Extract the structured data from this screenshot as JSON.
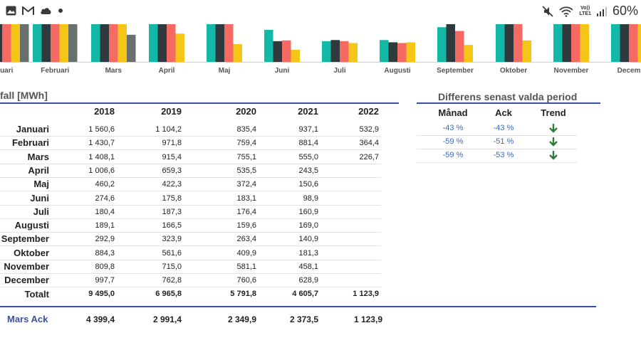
{
  "status_bar": {
    "left_icons": [
      "image-icon",
      "gmail-icon",
      "cloud-icon",
      "dot-icon"
    ],
    "right_icons": [
      "mute-icon",
      "wifi-icon",
      "volte-icon",
      "signal-icon"
    ],
    "volte_top": "Vo))",
    "volte_bottom": "LTE1",
    "battery": "60%"
  },
  "chart_data": {
    "type": "bar",
    "categories": [
      "uari",
      "Februari",
      "Mars",
      "April",
      "Maj",
      "Juni",
      "Juli",
      "Augusti",
      "September",
      "Oktober",
      "November",
      "Decem"
    ],
    "series": [
      {
        "color": "#14b8a6",
        "values": [
          1,
          1,
          1,
          1,
          1,
          0.85,
          0.55,
          0.58,
          0.92,
          1,
          1,
          1
        ]
      },
      {
        "color": "#2f3a3f",
        "values": [
          1,
          1,
          1,
          1,
          1,
          0.55,
          0.58,
          0.52,
          1.0,
          1,
          1,
          1
        ]
      },
      {
        "color": "#f56a63",
        "values": [
          1,
          1,
          1,
          1,
          1,
          0.57,
          0.55,
          0.5,
          0.82,
          1,
          1,
          1
        ]
      },
      {
        "color": "#f5c518",
        "values": [
          1,
          1,
          1,
          0.75,
          0.47,
          0.32,
          0.5,
          0.52,
          0.45,
          0.57,
          1,
          1
        ]
      },
      {
        "color": "#69716f",
        "values": [
          1,
          1,
          0.72,
          null,
          null,
          null,
          null,
          null,
          null,
          null,
          null,
          null
        ]
      }
    ]
  },
  "table": {
    "title": "fall [MWh]",
    "years": [
      "2018",
      "2019",
      "2020",
      "2021",
      "2022"
    ],
    "rows": [
      {
        "label": "Januari",
        "values": [
          "1 560,6",
          "1 104,2",
          "835,4",
          "937,1",
          "532,9"
        ]
      },
      {
        "label": "Februari",
        "values": [
          "1 430,7",
          "971,8",
          "759,4",
          "881,4",
          "364,4"
        ]
      },
      {
        "label": "Mars",
        "values": [
          "1 408,1",
          "915,4",
          "755,1",
          "555,0",
          "226,7"
        ]
      },
      {
        "label": "April",
        "values": [
          "1 006,6",
          "659,3",
          "535,5",
          "243,5",
          ""
        ]
      },
      {
        "label": "Maj",
        "values": [
          "460,2",
          "422,3",
          "372,4",
          "150,6",
          ""
        ]
      },
      {
        "label": "Juni",
        "values": [
          "274,6",
          "175,8",
          "183,1",
          "98,9",
          ""
        ]
      },
      {
        "label": "Juli",
        "values": [
          "180,4",
          "187,3",
          "176,4",
          "160,9",
          ""
        ]
      },
      {
        "label": "Augusti",
        "values": [
          "189,1",
          "166,5",
          "159,6",
          "169,0",
          ""
        ]
      },
      {
        "label": "September",
        "values": [
          "292,9",
          "323,9",
          "263,4",
          "140,9",
          ""
        ]
      },
      {
        "label": "Oktober",
        "values": [
          "884,3",
          "561,6",
          "409,9",
          "181,3",
          ""
        ]
      },
      {
        "label": "November",
        "values": [
          "809,8",
          "715,0",
          "581,1",
          "458,1",
          ""
        ]
      },
      {
        "label": "December",
        "values": [
          "997,7",
          "762,8",
          "760,6",
          "628,9",
          ""
        ]
      }
    ],
    "total": {
      "label": "Totalt",
      "values": [
        "9 495,0",
        "6 965,8",
        "5 791,8",
        "4 605,7",
        "1 123,9"
      ]
    },
    "ack": {
      "label": "Mars Ack",
      "values": [
        "4 399,4",
        "2 991,4",
        "2 349,9",
        "2 373,5",
        "1 123,9"
      ]
    }
  },
  "diff": {
    "title": "Differens senast valda period",
    "headers": [
      "Månad",
      "Ack",
      "Trend"
    ],
    "rows": [
      {
        "manad": "-43 %",
        "ack": "-43 %",
        "trend": "down-arrow-icon"
      },
      {
        "manad": "-59 %",
        "ack": "-51 %",
        "trend": "down-arrow-icon"
      },
      {
        "manad": "-59 %",
        "ack": "-53 %",
        "trend": "down-arrow-icon"
      }
    ],
    "arrow_color": "#2e7d3a"
  },
  "colors": {
    "accent_line": "#3b4fa0",
    "ack_label": "#3b4fa0",
    "percent": "#3b6ab8"
  }
}
